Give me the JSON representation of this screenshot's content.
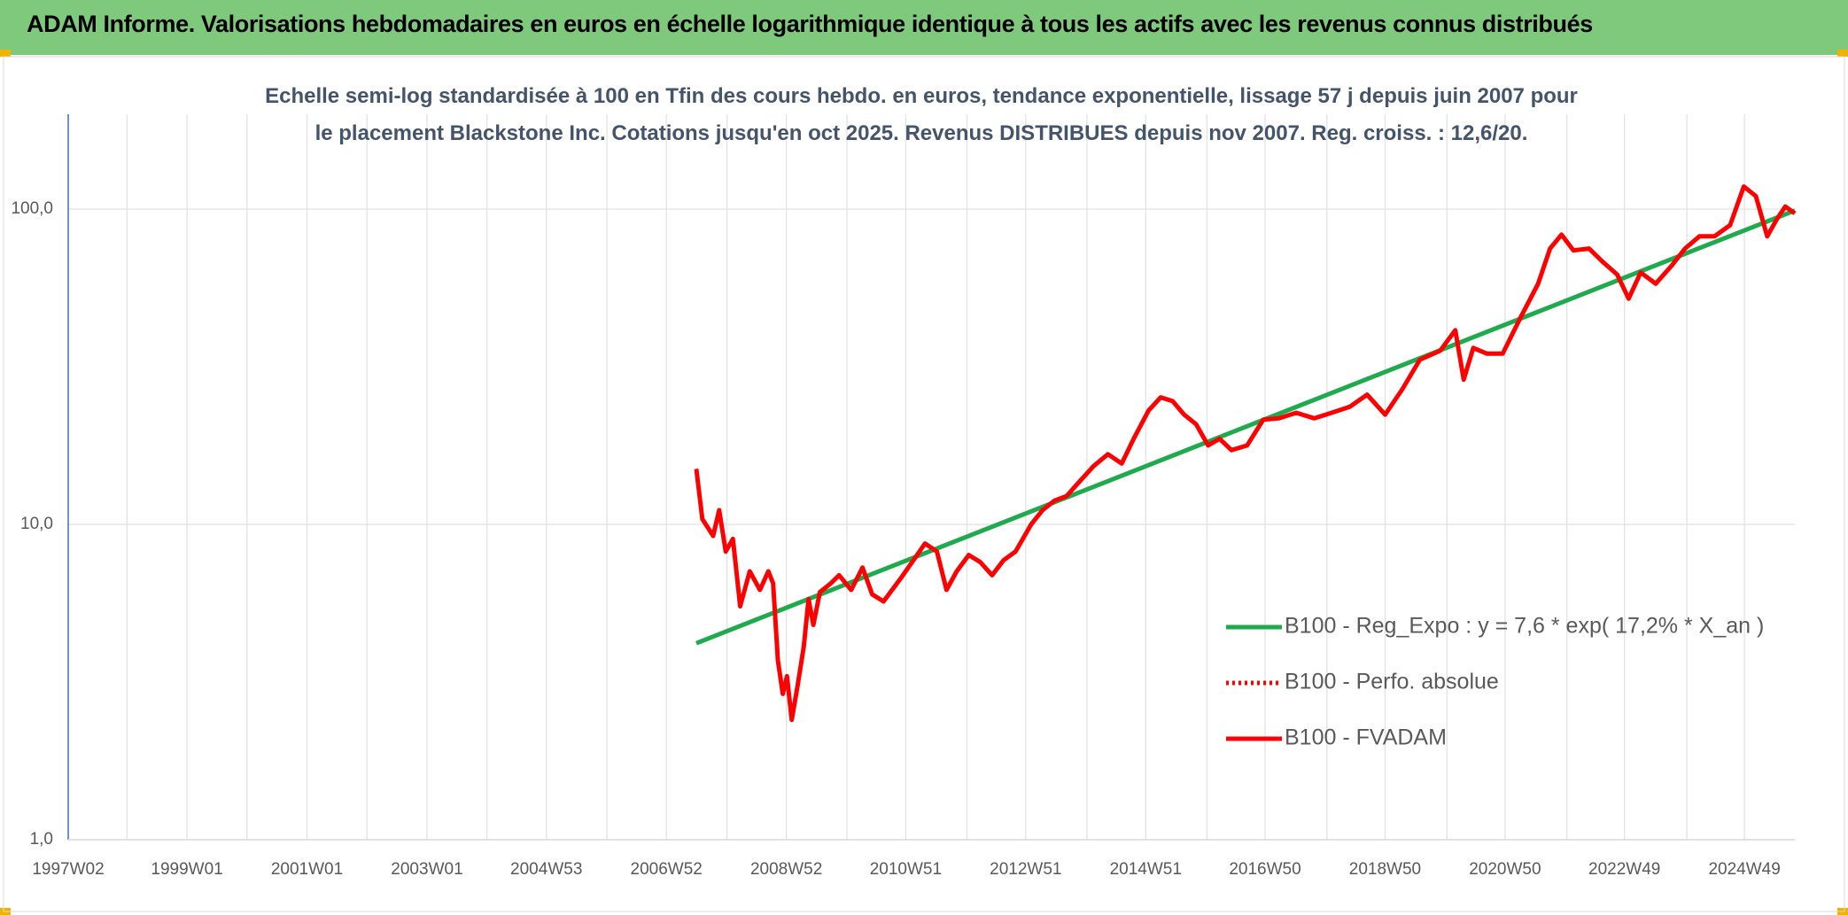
{
  "header": {
    "title": "ADAM Informe. Valorisations hebdomadaires en euros en échelle logarithmique identique à tous les actifs avec les revenus connus distribués"
  },
  "chart_data": {
    "type": "line",
    "title": "Echelle semi-log standardisée à 100 en Tfin des cours hebdo. en euros, tendance exponentielle, lissage 57 j depuis juin 2007 pour le placement Blackstone Inc. Cotations jusqu'en oct 2025. Revenus DISTRIBUES depuis nov 2007. Reg. croiss. : 12,6/20.",
    "log_scale": true,
    "grid": true,
    "legend": "center-right",
    "xlim": [
      1997.02,
      2025.8
    ],
    "xticks": [
      {
        "value": 1997.02,
        "label": "1997W02"
      },
      {
        "value": 1999.0,
        "label": "1999W01"
      },
      {
        "value": 2001.0,
        "label": "2001W01"
      },
      {
        "value": 2003.0,
        "label": "2003W01"
      },
      {
        "value": 2004.99,
        "label": "2004W53"
      },
      {
        "value": 2006.99,
        "label": "2006W52"
      },
      {
        "value": 2008.99,
        "label": "2008W52"
      },
      {
        "value": 2010.98,
        "label": "2010W51"
      },
      {
        "value": 2012.98,
        "label": "2012W51"
      },
      {
        "value": 2014.98,
        "label": "2014W51"
      },
      {
        "value": 2016.97,
        "label": "2016W50"
      },
      {
        "value": 2018.97,
        "label": "2018W50"
      },
      {
        "value": 2020.97,
        "label": "2020W50"
      },
      {
        "value": 2022.96,
        "label": "2022W49"
      },
      {
        "value": 2024.96,
        "label": "2024W49"
      }
    ],
    "xminorticks": [
      1998,
      2000,
      2002,
      2004,
      2006,
      2008,
      2010,
      2012,
      2014,
      2016,
      2018,
      2020,
      2022,
      2024
    ],
    "ylim": [
      1,
      200
    ],
    "yticks": [
      {
        "value": 1,
        "label": "1,0"
      },
      {
        "value": 10,
        "label": "10,0"
      },
      {
        "value": 100,
        "label": "100,0"
      }
    ],
    "series": [
      {
        "name": "B100 - Reg_Expo : y = 7,6 * exp( 17,2% *  X_an )",
        "color": "#1fab4d",
        "style": "solid",
        "x": [
          2007.49,
          2025.8
        ],
        "values": [
          4.2,
          99
        ]
      },
      {
        "name": "B100 - Perfo. absolue",
        "color": "#ff0000",
        "style": "dotted",
        "x": [
          2007.49,
          2007.59,
          2007.77,
          2007.87,
          2007.98,
          2008.1,
          2008.22,
          2008.38,
          2008.55,
          2008.69,
          2008.77,
          2008.85,
          2008.93,
          2009.0,
          2009.08,
          2009.18,
          2009.28,
          2009.36,
          2009.44,
          2009.55,
          2009.73,
          2009.87,
          2010.07,
          2010.26,
          2010.42,
          2010.61,
          2010.91,
          2011.17,
          2011.3,
          2011.5,
          2011.66,
          2011.83,
          2012.03,
          2012.22,
          2012.42,
          2012.61,
          2012.81,
          2013.07,
          2013.26,
          2013.46,
          2013.66,
          2013.85,
          2014.11,
          2014.35,
          2014.58,
          2014.78,
          2015.03,
          2015.23,
          2015.43,
          2015.62,
          2015.82,
          2016.02,
          2016.21,
          2016.41,
          2016.67,
          2016.94,
          2017.2,
          2017.49,
          2017.79,
          2018.08,
          2018.38,
          2018.67,
          2018.97,
          2019.26,
          2019.55,
          2019.89,
          2020.14,
          2020.28,
          2020.44,
          2020.67,
          2020.93,
          2021.22,
          2021.52,
          2021.72,
          2021.91,
          2022.11,
          2022.37,
          2022.6,
          2022.84,
          2023.03,
          2023.23,
          2023.48,
          2023.74,
          2023.97,
          2024.21,
          2024.46,
          2024.72,
          2024.95,
          2025.15,
          2025.34,
          2025.5,
          2025.64,
          2025.8
        ],
        "values": [
          15,
          10.4,
          9.2,
          11.1,
          8.2,
          9.0,
          5.5,
          7.1,
          6.2,
          7.1,
          6.5,
          3.7,
          2.9,
          3.3,
          2.4,
          3.1,
          4.1,
          5.8,
          4.8,
          6.1,
          6.5,
          6.9,
          6.2,
          7.3,
          6.0,
          5.7,
          6.8,
          8.0,
          8.7,
          8.2,
          6.2,
          7.1,
          8.0,
          7.6,
          6.9,
          7.7,
          8.2,
          10.0,
          11.1,
          11.9,
          12.3,
          13.5,
          15.3,
          16.7,
          15.6,
          18.7,
          23,
          25.3,
          24.6,
          22.3,
          20.8,
          17.8,
          18.7,
          17.2,
          17.8,
          21.5,
          21.7,
          22.6,
          21.7,
          22.6,
          23.6,
          25.8,
          22.3,
          26.9,
          33.3,
          35.6,
          41.3,
          28.8,
          36.3,
          34.8,
          34.8,
          45,
          58,
          75,
          83,
          74,
          75,
          68,
          62,
          52,
          63,
          58,
          66,
          75,
          82,
          82,
          89,
          118,
          110,
          82,
          93,
          102,
          97
        ]
      },
      {
        "name": "B100 - FVADAM",
        "color": "#ff0000",
        "style": "solid",
        "x": [
          2007.49,
          2007.59,
          2007.77,
          2007.87,
          2007.98,
          2008.1,
          2008.22,
          2008.38,
          2008.55,
          2008.69,
          2008.77,
          2008.85,
          2008.93,
          2009.0,
          2009.08,
          2009.18,
          2009.28,
          2009.36,
          2009.44,
          2009.55,
          2009.73,
          2009.87,
          2010.07,
          2010.26,
          2010.42,
          2010.61,
          2010.91,
          2011.17,
          2011.3,
          2011.5,
          2011.66,
          2011.83,
          2012.03,
          2012.22,
          2012.42,
          2012.61,
          2012.81,
          2013.07,
          2013.26,
          2013.46,
          2013.66,
          2013.85,
          2014.11,
          2014.35,
          2014.58,
          2014.78,
          2015.03,
          2015.23,
          2015.43,
          2015.62,
          2015.82,
          2016.02,
          2016.21,
          2016.41,
          2016.67,
          2016.94,
          2017.2,
          2017.49,
          2017.79,
          2018.08,
          2018.38,
          2018.67,
          2018.97,
          2019.26,
          2019.55,
          2019.89,
          2020.14,
          2020.28,
          2020.44,
          2020.67,
          2020.93,
          2021.22,
          2021.52,
          2021.72,
          2021.91,
          2022.11,
          2022.37,
          2022.6,
          2022.84,
          2023.03,
          2023.23,
          2023.48,
          2023.74,
          2023.97,
          2024.21,
          2024.46,
          2024.72,
          2024.95,
          2025.15,
          2025.34,
          2025.5,
          2025.64,
          2025.8
        ],
        "values": [
          15,
          10.4,
          9.2,
          11.1,
          8.2,
          9.0,
          5.5,
          7.1,
          6.2,
          7.1,
          6.5,
          3.7,
          2.9,
          3.3,
          2.4,
          3.1,
          4.1,
          5.8,
          4.8,
          6.1,
          6.5,
          6.9,
          6.2,
          7.3,
          6.0,
          5.7,
          6.8,
          8.0,
          8.7,
          8.2,
          6.2,
          7.1,
          8.0,
          7.6,
          6.9,
          7.7,
          8.2,
          10.0,
          11.1,
          11.9,
          12.3,
          13.5,
          15.3,
          16.7,
          15.6,
          18.7,
          23,
          25.3,
          24.6,
          22.3,
          20.8,
          17.8,
          18.7,
          17.2,
          17.8,
          21.5,
          21.7,
          22.6,
          21.7,
          22.6,
          23.6,
          25.8,
          22.3,
          26.9,
          33.3,
          35.6,
          41.3,
          28.8,
          36.3,
          34.8,
          34.8,
          45,
          58,
          75,
          83,
          74,
          75,
          68,
          62,
          52,
          63,
          58,
          66,
          75,
          82,
          82,
          89,
          118,
          110,
          82,
          93,
          102,
          97
        ]
      }
    ]
  }
}
